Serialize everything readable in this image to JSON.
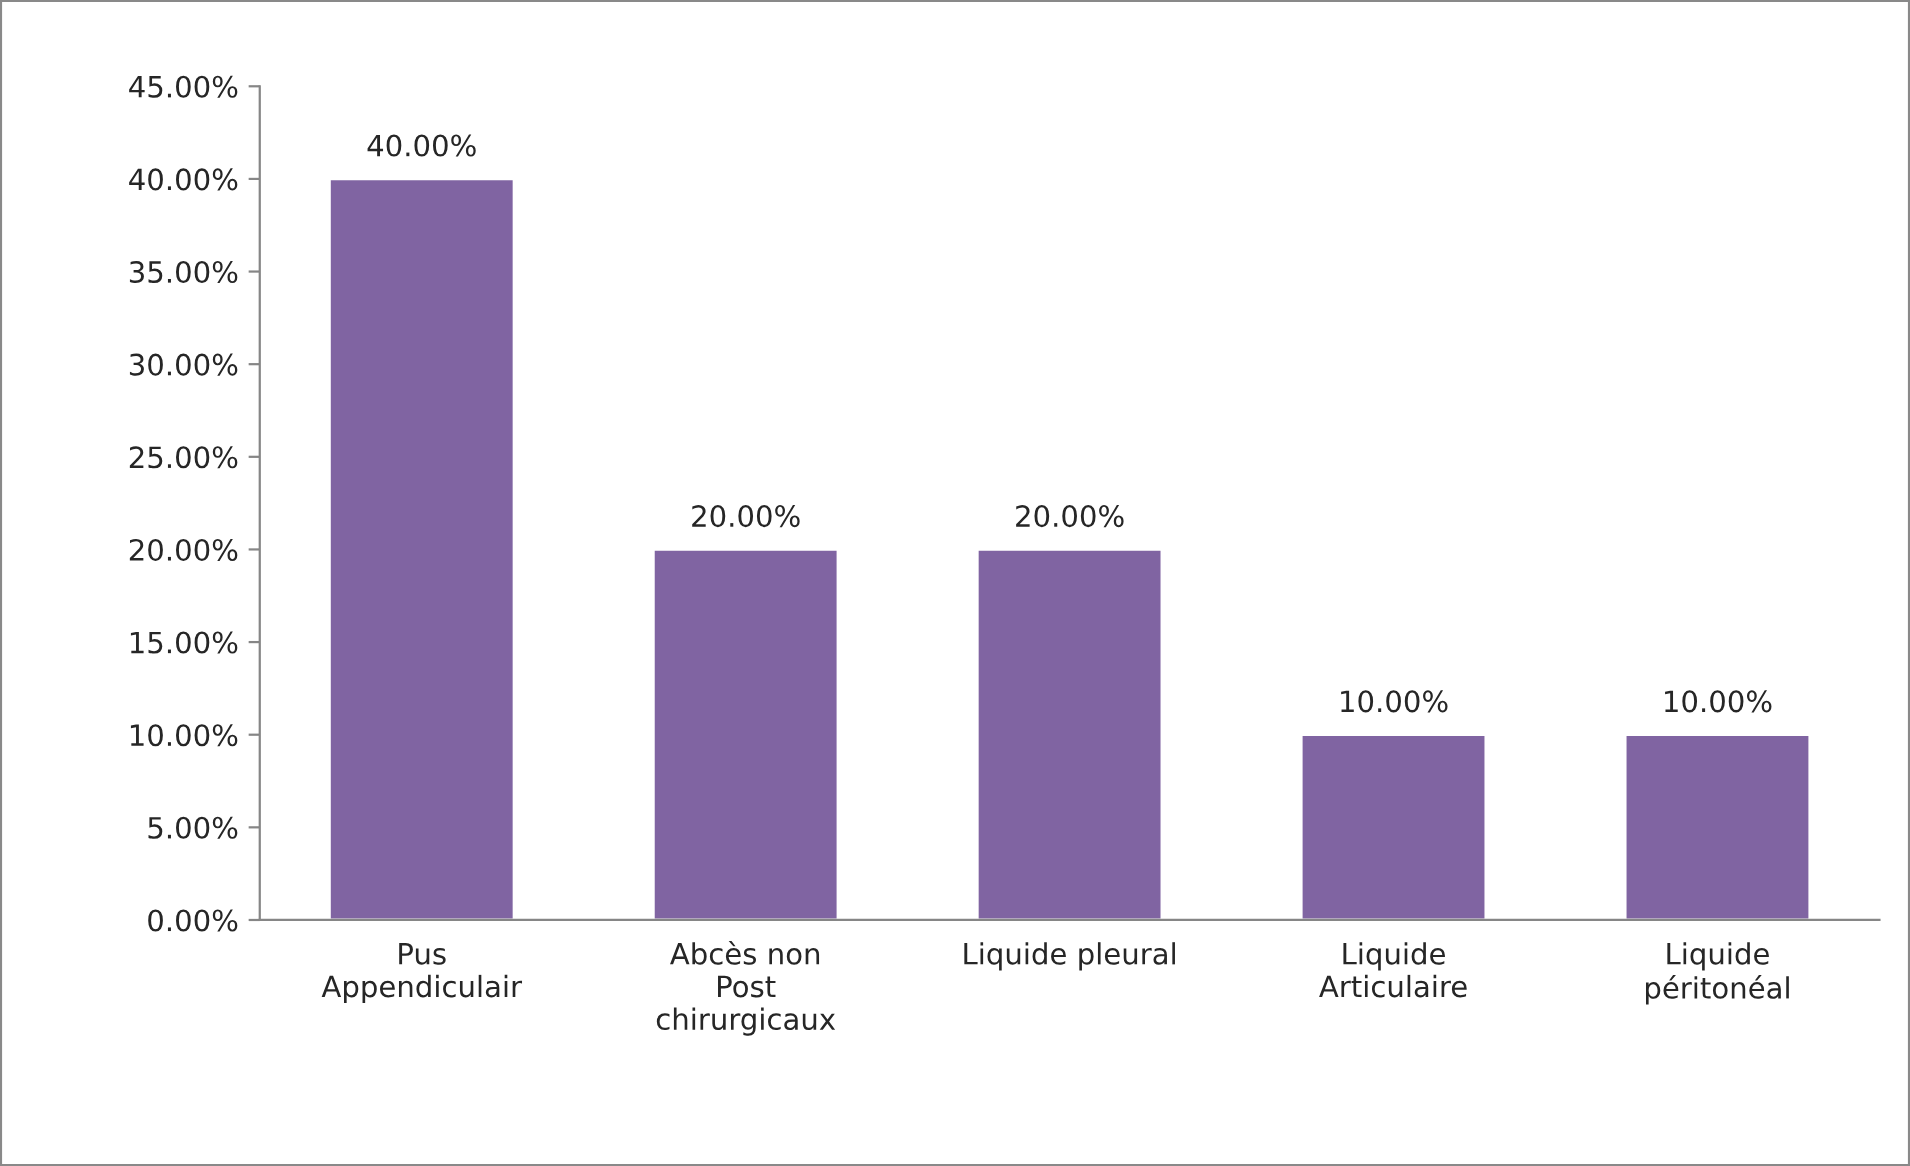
{
  "chart_data": {
    "type": "bar",
    "categories": [
      "Pus\nAppendiculair",
      "Abcès non\nPost\nchirurgicaux",
      "Liquide pleural",
      "Liquide\nArticulaire",
      "Liquide\npéritonéal"
    ],
    "values": [
      40,
      20,
      20,
      10,
      10
    ],
    "value_labels": [
      "40.00%",
      "20.00%",
      "20.00%",
      "10.00%",
      "10.00%"
    ],
    "color": "#8064a2",
    "ylim": [
      0,
      45
    ],
    "yticks": [
      {
        "value": 0,
        "label": "0.00%"
      },
      {
        "value": 5,
        "label": "5.00%"
      },
      {
        "value": 10,
        "label": "10.00%"
      },
      {
        "value": 15,
        "label": "15.00%"
      },
      {
        "value": 20,
        "label": "20.00%"
      },
      {
        "value": 25,
        "label": "25.00%"
      },
      {
        "value": 30,
        "label": "30.00%"
      },
      {
        "value": 35,
        "label": "35.00%"
      },
      {
        "value": 40,
        "label": "40.00%"
      },
      {
        "value": 45,
        "label": "45.00%"
      }
    ],
    "grid": false,
    "legend": false
  }
}
